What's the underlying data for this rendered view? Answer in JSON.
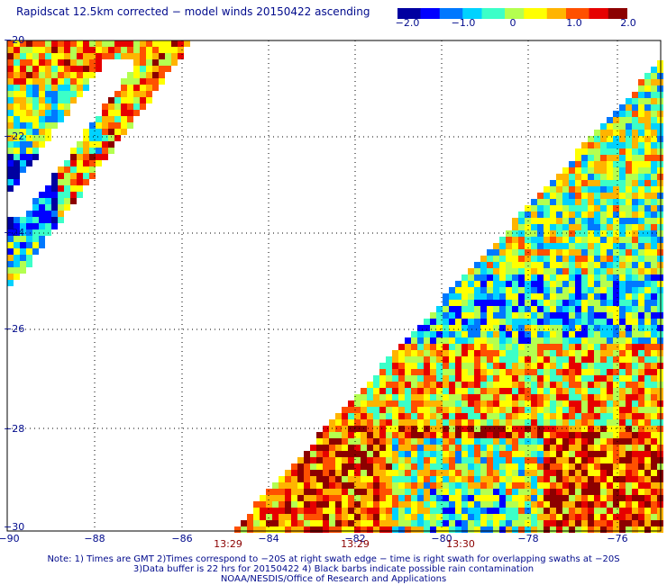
{
  "title": "Rapidscat 12.5km corrected − model winds 20150422 ascending",
  "colorbar": {
    "ticks": [
      "−2.0",
      "−1.0",
      "0",
      "1.0",
      "2.0"
    ],
    "colors": [
      "#0000a0",
      "#0000ff",
      "#0078ff",
      "#00d2ff",
      "#3cffc8",
      "#b4ff50",
      "#ffff00",
      "#ffb400",
      "#ff5000",
      "#e60000",
      "#8c0000"
    ]
  },
  "axes": {
    "lat_labels": [
      "−20",
      "−22",
      "−24",
      "−26",
      "−28",
      "−30"
    ],
    "lon_labels": [
      "−90",
      "−88",
      "−86",
      "−84",
      "−82",
      "−80",
      "−78",
      "−76"
    ],
    "lat_range": [
      -20,
      -30
    ],
    "lon_range": [
      -90,
      -74.9
    ],
    "grid": "dotted"
  },
  "time_labels": [
    "13:29",
    "13:29",
    "13:30"
  ],
  "notes": [
    "Note: 1) Times are GMT 2)Times correspond to −20S at right swath edge − time is right swath for overlapping swaths at −20S",
    "3)Data buffer is 22 hrs for 20150422 4) Black barbs indicate possible rain contamination",
    "NOAA/NESDIS/Office of Research and Applications"
  ],
  "colors": {
    "label_blue": "#000a8c",
    "time_red": "#8b0000",
    "grid": "#000000"
  }
}
